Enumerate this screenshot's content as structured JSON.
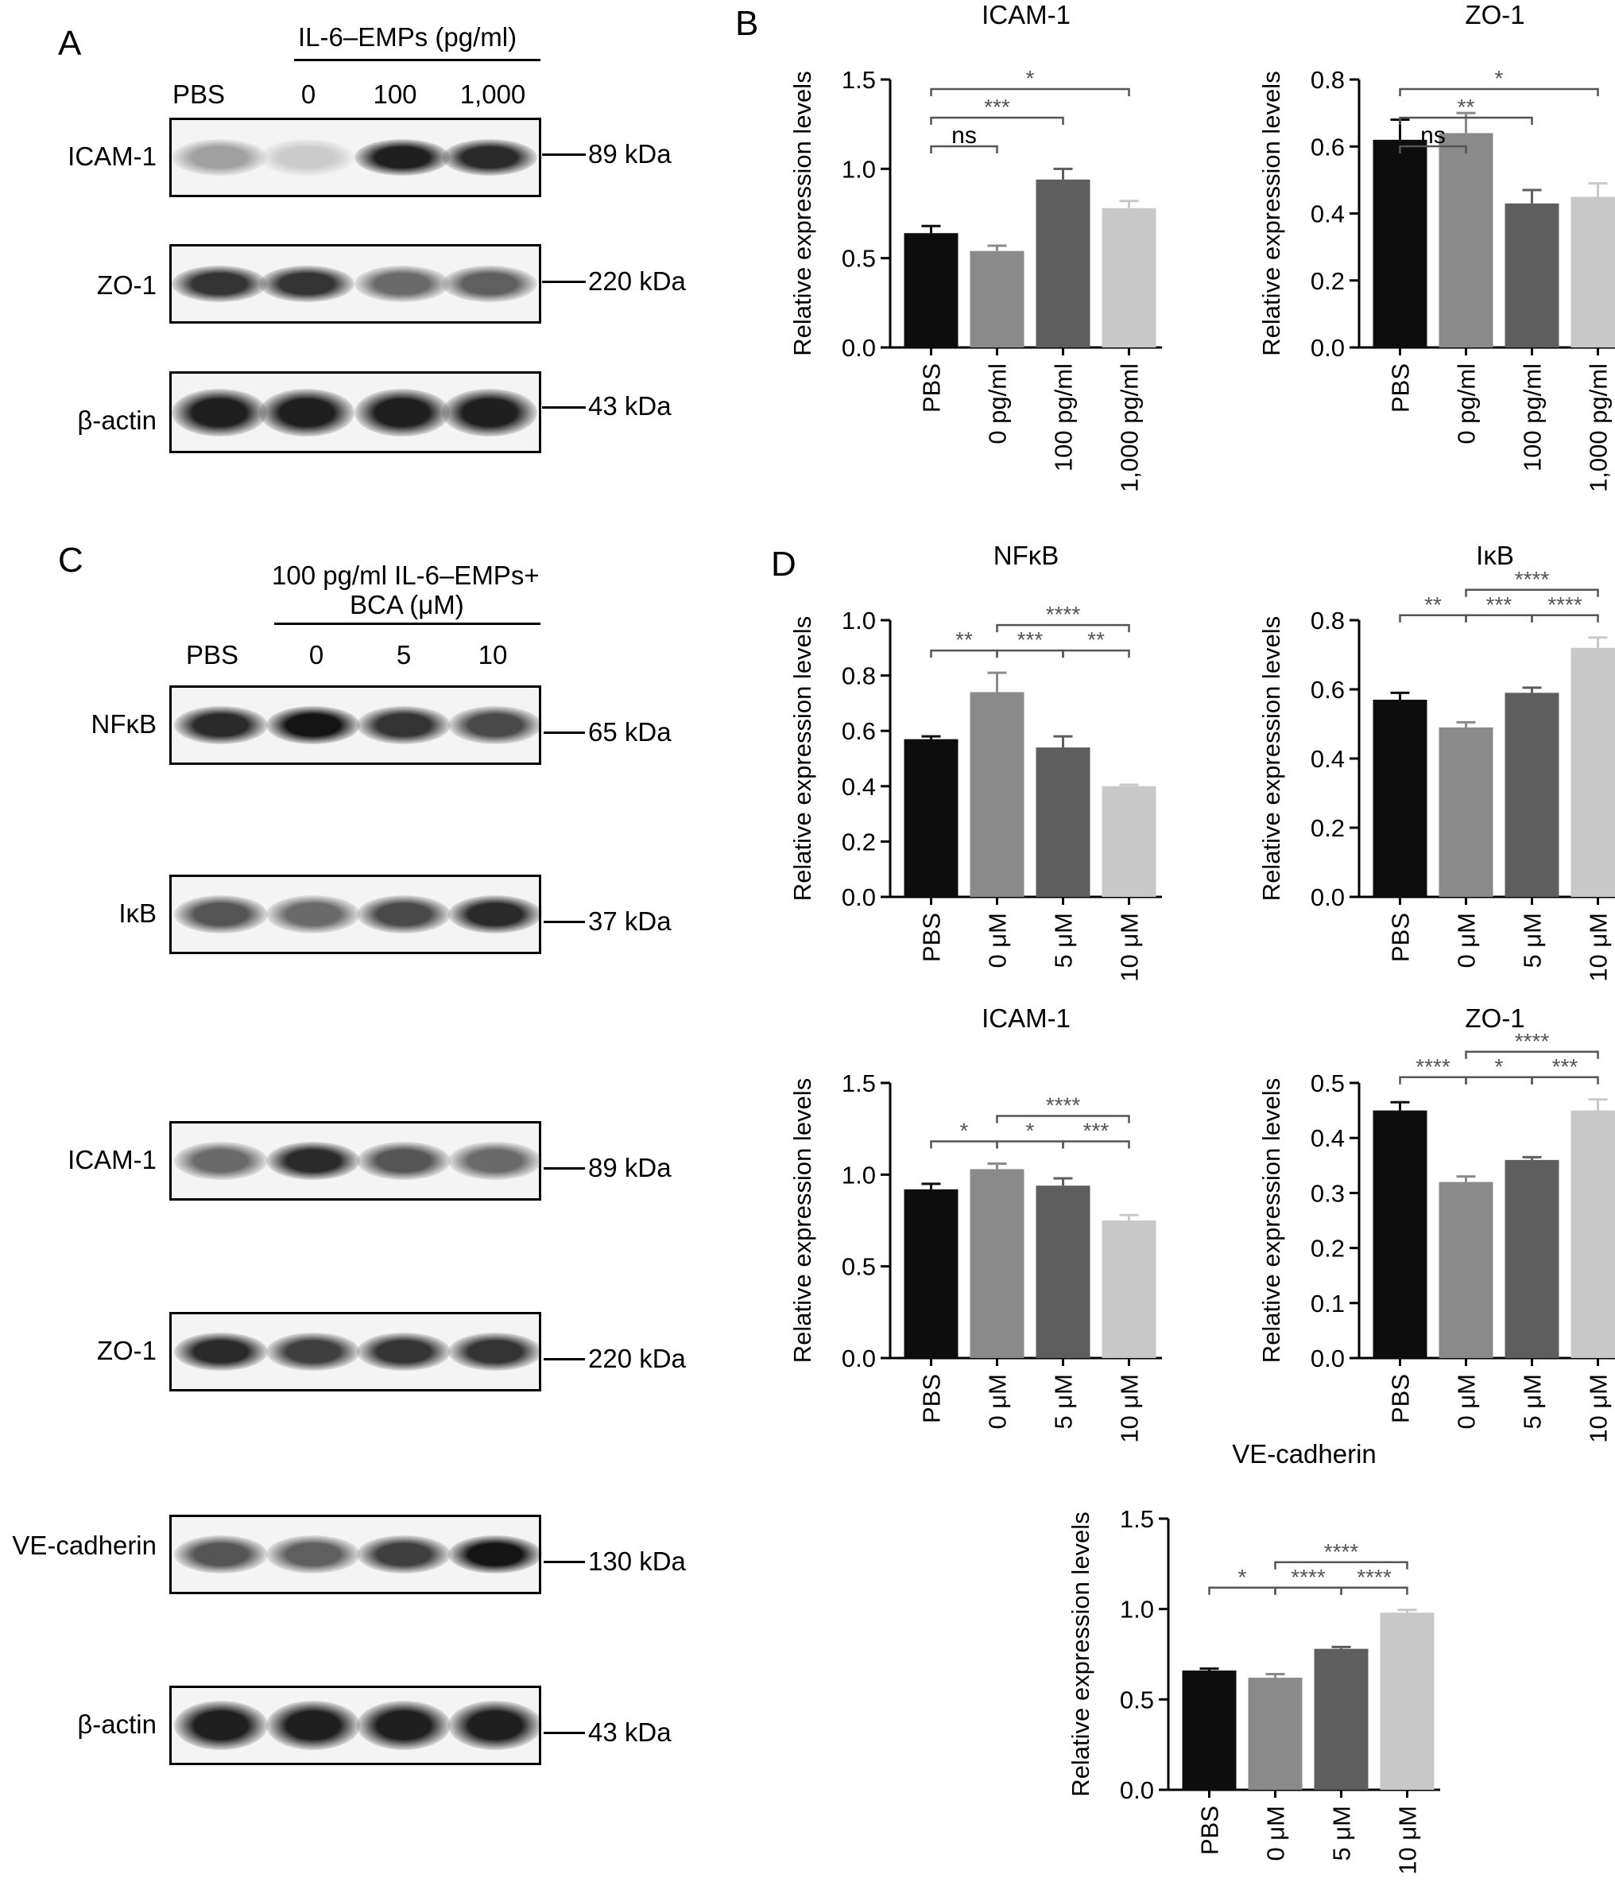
{
  "panels": {
    "a": "A",
    "b": "B",
    "c": "C",
    "d": "D"
  },
  "panel_a": {
    "header": "IL-6–EMPs (pg/ml)",
    "lanes": [
      "PBS",
      "0",
      "100",
      "1,000"
    ],
    "blots": [
      {
        "protein": "ICAM-1",
        "kda": "89 kDa",
        "band_intensity": [
          0.35,
          0.15,
          0.95,
          0.9
        ]
      },
      {
        "protein": "ZO-1",
        "kda": "220 kDa",
        "band_intensity": [
          0.85,
          0.85,
          0.6,
          0.65
        ]
      },
      {
        "protein": "β-actin",
        "kda": "43 kDa",
        "band_intensity": [
          0.95,
          0.95,
          0.95,
          0.95
        ]
      }
    ]
  },
  "panel_c": {
    "header_line1": "100 pg/ml IL-6–EMPs+",
    "header_line2": "BCA (μM)",
    "lanes": [
      "PBS",
      "0",
      "5",
      "10"
    ],
    "blots": [
      {
        "protein": "NFκB",
        "kda": "65 kDa",
        "band_intensity": [
          0.9,
          1.0,
          0.85,
          0.75
        ]
      },
      {
        "protein": "IκB",
        "kda": "37 kDa",
        "band_intensity": [
          0.7,
          0.6,
          0.75,
          0.9
        ]
      },
      {
        "protein": "ICAM-1",
        "kda": "89 kDa",
        "band_intensity": [
          0.6,
          0.9,
          0.7,
          0.6
        ]
      },
      {
        "protein": "ZO-1",
        "kda": "220 kDa",
        "band_intensity": [
          0.9,
          0.8,
          0.85,
          0.85
        ]
      },
      {
        "protein": "VE-cadherin",
        "kda": "130 kDa",
        "band_intensity": [
          0.7,
          0.65,
          0.8,
          1.0
        ]
      },
      {
        "protein": "β-actin",
        "kda": "43 kDa",
        "band_intensity": [
          0.95,
          0.95,
          0.95,
          0.95
        ]
      }
    ]
  },
  "colors": {
    "bar1": "#0d0d0d",
    "bar2": "#8a8a8a",
    "bar3": "#5e5e5e",
    "bar4": "#c8c8c8",
    "sig": "#555555"
  },
  "chart_data": [
    {
      "id": "b-icam1",
      "type": "bar",
      "title": "ICAM-1",
      "ylabel": "Relative expression levels",
      "categories": [
        "PBS",
        "0 pg/ml",
        "100 pg/ml",
        "1,000 pg/ml"
      ],
      "values": [
        0.64,
        0.54,
        0.94,
        0.78
      ],
      "errors": [
        0.04,
        0.03,
        0.06,
        0.04
      ],
      "ylim": [
        0.0,
        1.5
      ],
      "yticks": [
        "0.0",
        "0.5",
        "1.0",
        "1.5"
      ],
      "significance": [
        {
          "from": 0,
          "to": 1,
          "label": "ns"
        },
        {
          "from": 0,
          "to": 2,
          "label": "***"
        },
        {
          "from": 0,
          "to": 3,
          "label": "*"
        }
      ]
    },
    {
      "id": "b-zo1",
      "type": "bar",
      "title": "ZO-1",
      "ylabel": "Relative expression levels",
      "categories": [
        "PBS",
        "0 pg/ml",
        "100 pg/ml",
        "1,000 pg/ml"
      ],
      "values": [
        0.62,
        0.64,
        0.43,
        0.45
      ],
      "errors": [
        0.06,
        0.06,
        0.04,
        0.04
      ],
      "ylim": [
        0.0,
        0.8
      ],
      "yticks": [
        "0.0",
        "0.2",
        "0.4",
        "0.6",
        "0.8"
      ],
      "significance": [
        {
          "from": 0,
          "to": 1,
          "label": "ns"
        },
        {
          "from": 0,
          "to": 2,
          "label": "**"
        },
        {
          "from": 0,
          "to": 3,
          "label": "*"
        }
      ]
    },
    {
      "id": "d-nfkb",
      "type": "bar",
      "title": "NFκB",
      "ylabel": "Relative expression levels",
      "categories": [
        "PBS",
        "0 μM",
        "5 μM",
        "10 μM"
      ],
      "values": [
        0.57,
        0.74,
        0.54,
        0.4
      ],
      "errors": [
        0.01,
        0.07,
        0.04,
        0.005
      ],
      "ylim": [
        0.0,
        1.0
      ],
      "yticks": [
        "0.0",
        "0.2",
        "0.4",
        "0.6",
        "0.8",
        "1.0"
      ],
      "significance": [
        {
          "from": 0,
          "to": 1,
          "label": "**"
        },
        {
          "from": 1,
          "to": 2,
          "label": "***"
        },
        {
          "from": 2,
          "to": 3,
          "label": "**"
        },
        {
          "from": 1,
          "to": 3,
          "label": "****"
        }
      ]
    },
    {
      "id": "d-ikb",
      "type": "bar",
      "title": "IκB",
      "ylabel": "Relative expression levels",
      "categories": [
        "PBS",
        "0 μM",
        "5 μM",
        "10 μM"
      ],
      "values": [
        0.57,
        0.49,
        0.59,
        0.72
      ],
      "errors": [
        0.02,
        0.015,
        0.015,
        0.03
      ],
      "ylim": [
        0.0,
        0.8
      ],
      "yticks": [
        "0.0",
        "0.2",
        "0.4",
        "0.6",
        "0.8"
      ],
      "significance": [
        {
          "from": 0,
          "to": 1,
          "label": "**"
        },
        {
          "from": 1,
          "to": 2,
          "label": "***"
        },
        {
          "from": 2,
          "to": 3,
          "label": "****"
        },
        {
          "from": 1,
          "to": 3,
          "label": "****"
        }
      ]
    },
    {
      "id": "d-icam1",
      "type": "bar",
      "title": "ICAM-1",
      "ylabel": "Relative expression levels",
      "categories": [
        "PBS",
        "0 μM",
        "5 μM",
        "10 μM"
      ],
      "values": [
        0.92,
        1.03,
        0.94,
        0.75
      ],
      "errors": [
        0.03,
        0.03,
        0.04,
        0.03
      ],
      "ylim": [
        0.0,
        1.5
      ],
      "yticks": [
        "0.0",
        "0.5",
        "1.0",
        "1.5"
      ],
      "significance": [
        {
          "from": 0,
          "to": 1,
          "label": "*"
        },
        {
          "from": 1,
          "to": 2,
          "label": "*"
        },
        {
          "from": 2,
          "to": 3,
          "label": "***"
        },
        {
          "from": 1,
          "to": 3,
          "label": "****"
        }
      ]
    },
    {
      "id": "d-zo1",
      "type": "bar",
      "title": "ZO-1",
      "ylabel": "Relative expression levels",
      "categories": [
        "PBS",
        "0 μM",
        "5 μM",
        "10 μM"
      ],
      "values": [
        0.45,
        0.32,
        0.36,
        0.45
      ],
      "errors": [
        0.015,
        0.01,
        0.005,
        0.02
      ],
      "ylim": [
        0.0,
        0.5
      ],
      "yticks": [
        "0.0",
        "0.1",
        "0.2",
        "0.3",
        "0.4",
        "0.5"
      ],
      "significance": [
        {
          "from": 0,
          "to": 1,
          "label": "****"
        },
        {
          "from": 1,
          "to": 2,
          "label": "*"
        },
        {
          "from": 2,
          "to": 3,
          "label": "***"
        },
        {
          "from": 1,
          "to": 3,
          "label": "****"
        }
      ]
    },
    {
      "id": "d-vecad",
      "type": "bar",
      "title": "VE-cadherin",
      "ylabel": "Relative expression levels",
      "categories": [
        "PBS",
        "0 μM",
        "5 μM",
        "10 μM"
      ],
      "values": [
        0.66,
        0.62,
        0.78,
        0.98
      ],
      "errors": [
        0.01,
        0.02,
        0.01,
        0.015
      ],
      "ylim": [
        0.0,
        1.5
      ],
      "yticks": [
        "0.0",
        "0.5",
        "1.0",
        "1.5"
      ],
      "significance": [
        {
          "from": 0,
          "to": 1,
          "label": "*"
        },
        {
          "from": 1,
          "to": 2,
          "label": "****"
        },
        {
          "from": 2,
          "to": 3,
          "label": "****"
        },
        {
          "from": 1,
          "to": 3,
          "label": "****"
        }
      ]
    }
  ]
}
